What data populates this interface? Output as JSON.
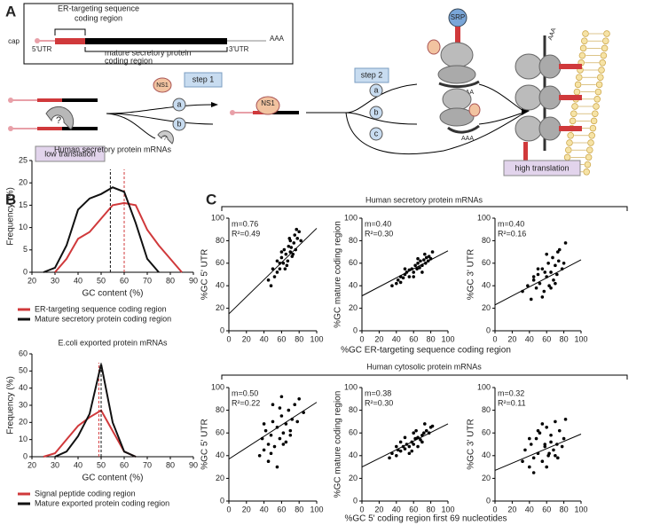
{
  "panel_a": {
    "letter": "A",
    "box_labels": {
      "cap": "cap",
      "utr5": "5'UTR",
      "utr3": "3'UTR",
      "polya": "AAA",
      "er_region": [
        "ER-targeting sequence",
        "coding region"
      ],
      "mature_region": [
        "mature secretory protein",
        "coding region"
      ]
    },
    "ns1": "NS1",
    "step1": "step 1",
    "step2": "step 2",
    "unknown": "?",
    "paths": [
      "a",
      "b",
      "c"
    ],
    "srp": "SRP",
    "polya_small": "AAA",
    "low_translation": "low translation",
    "high_translation": "high translation"
  },
  "panel_b_letter": "B",
  "panel_c_letter": "C",
  "panel_c_groups": [
    "Human secretory protein mRNAs",
    "Human cytosolic protein mRNAs"
  ],
  "panel_c_xlabels": [
    "%GC ER-targeting sequence coding region",
    "%GC 5' coding region first 69 nucleotides"
  ],
  "chart_data": [
    {
      "type": "line",
      "title": "Human secretory protein mRNAs",
      "xlabel": "GC content (%)",
      "ylabel": "Frequency (%)",
      "xlim": [
        20,
        90
      ],
      "xticks": [
        20,
        30,
        40,
        50,
        60,
        70,
        80,
        90
      ],
      "ylim": [
        0,
        25
      ],
      "yticks": [
        0,
        5,
        10,
        15,
        20,
        25
      ],
      "series": [
        {
          "name": "ER-targeting sequence coding region",
          "color": "#d0393b",
          "mean": 60,
          "x": [
            30,
            35,
            40,
            45,
            50,
            55,
            60,
            65,
            70,
            75,
            80,
            85
          ],
          "values": [
            0,
            3,
            7.5,
            9,
            12,
            15,
            15.5,
            15,
            9.5,
            6,
            3,
            0
          ]
        },
        {
          "name": "Mature secretory protein coding region",
          "color": "#111111",
          "mean": 54,
          "x": [
            25,
            30,
            35,
            40,
            45,
            50,
            55,
            60,
            65,
            70,
            75
          ],
          "values": [
            0,
            1,
            6,
            14,
            16.5,
            17.5,
            19,
            18,
            11,
            3,
            0
          ]
        }
      ]
    },
    {
      "type": "line",
      "title": "E.coli exported protein mRNAs",
      "xlabel": "GC content (%)",
      "ylabel": "Frequency (%)",
      "xlim": [
        20,
        90
      ],
      "xticks": [
        20,
        30,
        40,
        50,
        60,
        70,
        80,
        90
      ],
      "ylim": [
        0,
        60
      ],
      "yticks": [
        0,
        10,
        20,
        30,
        40,
        50,
        60
      ],
      "series": [
        {
          "name": "Signal peptide coding region",
          "color": "#d0393b",
          "mean": 49,
          "x": [
            25,
            30,
            35,
            40,
            45,
            50,
            55,
            60,
            65
          ],
          "values": [
            0,
            2,
            10,
            18,
            23,
            27,
            15,
            3,
            0
          ]
        },
        {
          "name": "Mature exported protein coding region",
          "color": "#111111",
          "mean": 50,
          "x": [
            30,
            35,
            40,
            45,
            50,
            55,
            60,
            65
          ],
          "values": [
            0,
            3,
            12,
            25,
            54,
            20,
            3,
            0
          ]
        }
      ]
    },
    {
      "type": "scatter",
      "ylabel": "%GC 5' UTR",
      "xlim": [
        0,
        100
      ],
      "ylim": [
        0,
        100
      ],
      "xticks": [
        0,
        20,
        40,
        60,
        80,
        100
      ],
      "yticks": [
        0,
        20,
        40,
        60,
        80,
        100
      ],
      "color": "#000000",
      "fit": {
        "slope": 0.76,
        "intercept": 15,
        "r2": 0.49,
        "labels": [
          "m=0.76",
          "R²=0.49"
        ]
      },
      "x": [
        45,
        50,
        52,
        55,
        58,
        60,
        62,
        63,
        65,
        66,
        68,
        70,
        70,
        72,
        74,
        75,
        76,
        78,
        80,
        82,
        48,
        55,
        60,
        64,
        67,
        71,
        73,
        77,
        58,
        69
      ],
      "values": [
        45,
        55,
        48,
        62,
        55,
        65,
        60,
        72,
        68,
        58,
        75,
        70,
        80,
        66,
        78,
        85,
        72,
        82,
        88,
        80,
        40,
        52,
        70,
        55,
        62,
        74,
        68,
        90,
        60,
        82
      ]
    },
    {
      "type": "scatter",
      "ylabel": "%GC mature coding region",
      "xlim": [
        0,
        100
      ],
      "ylim": [
        0,
        100
      ],
      "xticks": [
        0,
        20,
        40,
        60,
        80,
        100
      ],
      "yticks": [
        0,
        20,
        40,
        60,
        80,
        100
      ],
      "color": "#000000",
      "fit": {
        "slope": 0.4,
        "intercept": 31,
        "r2": 0.3,
        "labels": [
          "m=0.40",
          "R²=0.30"
        ]
      },
      "x": [
        35,
        40,
        42,
        45,
        48,
        50,
        52,
        55,
        58,
        60,
        62,
        64,
        65,
        67,
        68,
        70,
        72,
        74,
        75,
        77,
        78,
        80,
        82,
        55,
        60,
        65,
        70,
        50,
        45,
        73
      ],
      "values": [
        40,
        42,
        45,
        48,
        47,
        50,
        52,
        48,
        55,
        52,
        58,
        55,
        60,
        56,
        62,
        58,
        63,
        60,
        65,
        62,
        66,
        64,
        70,
        54,
        48,
        64,
        52,
        55,
        43,
        68
      ]
    },
    {
      "type": "scatter",
      "ylabel": "%GC 3' UTR",
      "xlim": [
        0,
        100
      ],
      "ylim": [
        0,
        100
      ],
      "xticks": [
        0,
        20,
        40,
        60,
        80,
        100
      ],
      "yticks": [
        0,
        20,
        40,
        60,
        80,
        100
      ],
      "color": "#000000",
      "fit": {
        "slope": 0.4,
        "intercept": 23,
        "r2": 0.16,
        "labels": [
          "m=0.40",
          "R²=0.16"
        ]
      },
      "x": [
        32,
        38,
        42,
        45,
        48,
        50,
        52,
        55,
        57,
        60,
        62,
        63,
        65,
        67,
        68,
        70,
        72,
        74,
        75,
        78,
        80,
        82,
        55,
        60,
        65,
        50,
        45,
        70,
        58,
        73
      ],
      "values": [
        35,
        40,
        28,
        45,
        38,
        50,
        42,
        55,
        35,
        48,
        60,
        40,
        52,
        65,
        45,
        58,
        50,
        62,
        72,
        55,
        60,
        78,
        30,
        68,
        38,
        55,
        48,
        42,
        52,
        70
      ]
    },
    {
      "type": "scatter",
      "ylabel": "%GC 5' UTR",
      "xlim": [
        0,
        100
      ],
      "ylim": [
        0,
        100
      ],
      "xticks": [
        0,
        20,
        40,
        60,
        80,
        100
      ],
      "yticks": [
        0,
        20,
        40,
        60,
        80,
        100
      ],
      "color": "#000000",
      "fit": {
        "slope": 0.5,
        "intercept": 37,
        "r2": 0.22,
        "labels": [
          "m=0.50",
          "R²=0.22"
        ]
      },
      "x": [
        35,
        38,
        40,
        42,
        45,
        48,
        50,
        52,
        55,
        58,
        60,
        62,
        65,
        68,
        70,
        72,
        75,
        78,
        80,
        85,
        45,
        50,
        55,
        60,
        65,
        70,
        40,
        48,
        58,
        62
      ],
      "values": [
        40,
        55,
        45,
        62,
        50,
        58,
        70,
        48,
        65,
        55,
        75,
        60,
        68,
        80,
        62,
        72,
        85,
        70,
        90,
        78,
        35,
        85,
        30,
        92,
        52,
        58,
        68,
        42,
        82,
        50
      ]
    },
    {
      "type": "scatter",
      "ylabel": "%GC mature coding region",
      "xlim": [
        0,
        100
      ],
      "ylim": [
        0,
        100
      ],
      "xticks": [
        0,
        20,
        40,
        60,
        80,
        100
      ],
      "yticks": [
        0,
        20,
        40,
        60,
        80,
        100
      ],
      "color": "#000000",
      "fit": {
        "slope": 0.38,
        "intercept": 30,
        "r2": 0.3,
        "labels": [
          "m=0.38",
          "R²=0.30"
        ]
      },
      "x": [
        32,
        35,
        40,
        42,
        45,
        48,
        50,
        52,
        55,
        58,
        60,
        62,
        65,
        68,
        70,
        72,
        75,
        78,
        80,
        82,
        45,
        55,
        60,
        65,
        70,
        50,
        40,
        73,
        58,
        63
      ],
      "values": [
        38,
        42,
        40,
        45,
        44,
        48,
        46,
        50,
        48,
        52,
        50,
        55,
        56,
        54,
        58,
        60,
        62,
        60,
        65,
        66,
        52,
        42,
        60,
        48,
        52,
        56,
        48,
        68,
        44,
        62
      ]
    },
    {
      "type": "scatter",
      "ylabel": "%GC 3' UTR",
      "xlim": [
        0,
        100
      ],
      "ylim": [
        0,
        100
      ],
      "xticks": [
        0,
        20,
        40,
        60,
        80,
        100
      ],
      "yticks": [
        0,
        20,
        40,
        60,
        80,
        100
      ],
      "color": "#000000",
      "fit": {
        "slope": 0.32,
        "intercept": 27,
        "r2": 0.11,
        "labels": [
          "m=0.32",
          "R²=0.11"
        ]
      },
      "x": [
        32,
        35,
        40,
        42,
        45,
        48,
        50,
        52,
        55,
        58,
        60,
        62,
        65,
        68,
        70,
        72,
        75,
        78,
        80,
        82,
        45,
        55,
        60,
        65,
        70,
        50,
        40,
        73,
        58,
        63
      ],
      "values": [
        35,
        45,
        30,
        50,
        38,
        55,
        42,
        60,
        35,
        48,
        65,
        40,
        58,
        45,
        70,
        50,
        62,
        48,
        55,
        72,
        25,
        68,
        30,
        52,
        40,
        62,
        55,
        38,
        50,
        42
      ]
    }
  ]
}
